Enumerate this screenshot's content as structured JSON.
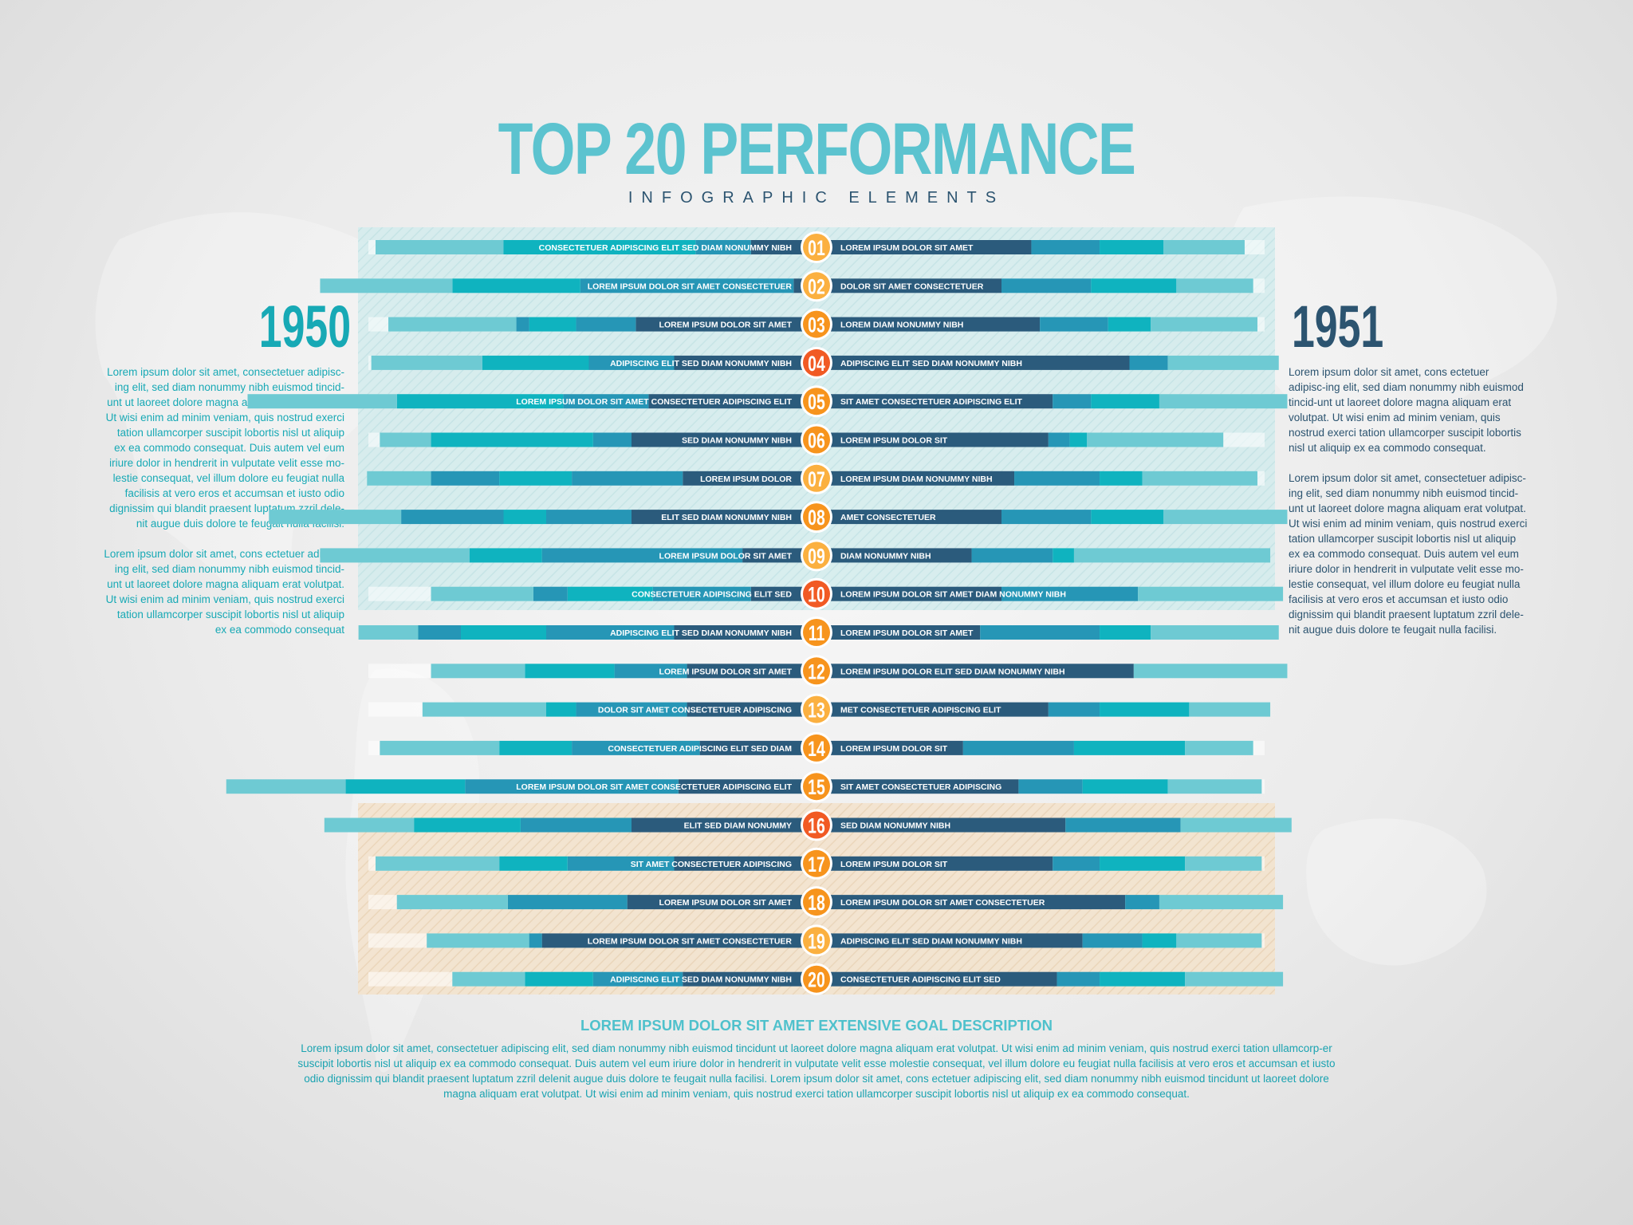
{
  "header": {
    "title": "TOP 20 PERFORMANCE",
    "subtitle": "INFOGRAPHIC ELEMENTS"
  },
  "left_panel": {
    "year": "1950",
    "paragraphs": [
      "Lorem ipsum dolor sit amet, consectetuer adipisc-ing elit, sed diam nonummy nibh euismod tincid-unt ut laoreet dolore magna aliquam erat volutpat. Ut wisi enim ad minim veniam, quis nostrud exerci tation ullamcorper suscipit lobortis nisl ut aliquip ex ea commodo consequat. Duis autem vel eum iriure dolor in hendrerit in vulputate velit esse mo-lestie consequat, vel illum dolore eu feugiat nulla facilisis at vero eros et accumsan et iusto odio dignissim qui blandit praesent luptatum zzril dele-nit augue duis dolore te feugait nulla facilisi.",
      "Lorem ipsum dolor sit amet, cons ectetuer adipisc-ing elit, sed diam nonummy nibh euismod tincid-unt ut laoreet dolore magna aliquam erat volutpat. Ut wisi enim ad minim veniam, quis nostrud exerci tation ullamcorper suscipit lobortis nisl ut aliquip ex ea commodo consequat"
    ]
  },
  "right_panel": {
    "year": "1951",
    "paragraphs": [
      "Lorem ipsum dolor sit amet, cons ectetuer adipisc-ing elit, sed diam nonummy nibh euismod tincid-unt ut laoreet dolore magna aliquam erat volutpat. Ut wisi enim ad minim veniam, quis nostrud exerci tation ullamcorper suscipit lobortis nisl ut aliquip ex ea commodo consequat.",
      "Lorem ipsum dolor sit amet, consectetuer adipisc-ing elit, sed diam nonummy nibh euismod tincid-unt ut laoreet dolore magna aliquam erat volutpat. Ut wisi enim ad minim veniam, quis nostrud exerci tation ullamcorper suscipit lobortis nisl ut aliquip ex ea commodo consequat. Duis autem vel eum iriure dolor in hendrerit in vulputate velit esse mo-lestie consequat, vel illum dolore eu feugiat nulla facilisis at vero eros et accumsan et iusto odio dignissim qui blandit praesent luptatum zzril dele-nit augue duis dolore te feugait nulla facilisi."
    ]
  },
  "footer": {
    "goal_title": "LOREM IPSUM DOLOR SIT AMET EXTENSIVE GOAL DESCRIPTION",
    "goal_text": "Lorem ipsum dolor sit amet, consectetuer adipiscing elit, sed diam nonummy nibh euismod tincidunt ut laoreet dolore magna aliquam erat volutpat. Ut wisi enim ad minim veniam, quis nostrud exerci tation ullamcorp-er suscipit lobortis nisl ut aliquip ex ea commodo consequat. Duis autem vel eum iriure dolor in hendrerit in vulputate velit esse molestie consequat, vel illum dolore eu feugiat nulla facilisis at vero eros et accumsan et iusto odio dignissim qui blandit praesent luptatum zzril delenit augue duis dolore te feugait nulla facilisi. Lorem ipsum dolor sit amet, cons ectetuer adipiscing elit, sed diam nonummy nibh euismod tincidunt ut laoreet dolore magna aliquam erat volutpat. Ut wisi enim ad minim veniam, quis nostrud exerci tation ullamcorper suscipit lobortis nisl ut aliquip ex ea commodo consequat."
  },
  "colors": {
    "accent": "#5cc3cf",
    "dark": "#2c5470",
    "seg_light": "#6ecad3",
    "seg_teal": "#0fb3bf",
    "seg_mid": "#2696b6",
    "seg_dark": "#2b5b7c",
    "badge_yellow": "#fbb040",
    "badge_orange": "#f7941d",
    "badge_red": "#f15a24",
    "band_top": "#cfe9ea",
    "band_bottom": "#f3e1c9"
  },
  "chart_data": {
    "type": "bar",
    "layout": "diverging",
    "title": "TOP 20 PERFORMANCE",
    "subtitle": "INFOGRAPHIC ELEMENTS",
    "series_left_name": "1950",
    "series_right_name": "1951",
    "axis_max": 100,
    "rows": [
      {
        "rank": "01",
        "left_label": "CONSECTETUER ADIPISCING ELIT SED DIAM NONUMMY NIBH",
        "right_label": "LOREM IPSUM DOLOR SIT AMET",
        "left": [
          12,
          13,
          45,
          30
        ],
        "right": [
          47,
          16,
          15,
          19
        ],
        "badge": "yellow"
      },
      {
        "rank": "02",
        "left_label": "LOREM IPSUM DOLOR SIT AMET CONSECTETUER",
        "right_label": "DOLOR SIT AMET CONSECTETUER",
        "left": [
          2,
          50,
          30,
          31
        ],
        "right": [
          40,
          21,
          20,
          18
        ],
        "badge": "yellow"
      },
      {
        "rank": "03",
        "left_label": "LOREM IPSUM DOLOR SIT AMET",
        "right_label": "LOREM DIAM NONUMMY NIBH",
        "left": [
          39,
          14,
          11,
          3,
          30
        ],
        "right": [
          49,
          16,
          10,
          25
        ],
        "badge": "orange"
      },
      {
        "rank": "04",
        "left_label": "ADIPISCING ELIT SED DIAM NONUMMY NIBH",
        "right_label": "ADIPISCING ELIT SED DIAM NONUMMY NIBH",
        "left": [
          30,
          20,
          25,
          26
        ],
        "right": [
          70,
          9,
          26
        ],
        "badge": "red"
      },
      {
        "rank": "05",
        "left_label": "LOREM IPSUM DOLOR SIT AMET CONSECTETUER ADIPISCING ELIT",
        "right_label": "SIT AMET CONSECTETUER ADIPISCING ELIT",
        "left": [
          36,
          20,
          39,
          35
        ],
        "right": [
          52,
          9,
          16,
          30
        ],
        "badge": "orange"
      },
      {
        "rank": "06",
        "left_label": "SED DIAM NONUMMY NIBH",
        "right_label": "LOREM IPSUM DOLOR SIT",
        "left": [
          40,
          9,
          38,
          12
        ],
        "right": [
          51,
          5,
          4,
          32
        ],
        "badge": "orange"
      },
      {
        "rank": "07",
        "left_label": "LOREM IPSUM DOLOR",
        "right_label": "LOREM IPSUM DIAM NONUMMY NIBH",
        "left": [
          28,
          26,
          17,
          16,
          15
        ],
        "right": [
          43,
          20,
          10,
          27
        ],
        "badge": "yellow"
      },
      {
        "rank": "08",
        "left_label": "ELIT SED DIAM NONUMMY NIBH",
        "right_label": "AMET CONSECTETUER",
        "left": [
          40,
          20,
          10,
          24,
          31
        ],
        "right": [
          40,
          21,
          17,
          29
        ],
        "badge": "orange"
      },
      {
        "rank": "09",
        "left_label": "LOREM IPSUM DOLOR SIT AMET",
        "right_label": "DIAM NONUMMY NIBH",
        "left": [
          14,
          47,
          17,
          35
        ],
        "right": [
          33,
          19,
          5,
          46
        ],
        "badge": "yellow"
      },
      {
        "rank": "10",
        "left_label": "CONSECTETUER ADIPISCING ELIT SED",
        "right_label": "LOREM IPSUM DOLOR SIT AMET DIAM NONUMMY NIBH",
        "left": [
          12,
          23,
          20,
          8,
          24
        ],
        "right": [
          40,
          32,
          34
        ],
        "badge": "red"
      },
      {
        "rank": "11",
        "left_label": "ADIPISCING ELIT SED DIAM NONUMMY NIBH",
        "right_label": "LOREM IPSUM DOLOR SIT AMET",
        "left": [
          30,
          30,
          20,
          10,
          14
        ],
        "right": [
          35,
          28,
          12,
          30
        ],
        "badge": "orange"
      },
      {
        "rank": "12",
        "left_label": "LOREM IPSUM DOLOR SIT AMET",
        "right_label": "LOREM IPSUM DOLOR ELIT SED DIAM NONUMMY NIBH",
        "left": [
          27,
          17,
          21,
          22
        ],
        "right": [
          71,
          36
        ],
        "badge": "orange"
      },
      {
        "rank": "13",
        "left_label": "DOLOR SIT AMET CONSECTETUER ADIPISCING",
        "right_label": "MET CONSECTETUER ADIPISCING ELIT",
        "left": [
          27,
          26,
          7,
          29
        ],
        "right": [
          51,
          12,
          21,
          19
        ],
        "badge": "yellow"
      },
      {
        "rank": "14",
        "left_label": "CONSECTETUER ADIPISCING ELIT SED DIAM",
        "right_label": "LOREM IPSUM DOLOR SIT",
        "left": [
          24,
          30,
          17,
          28
        ],
        "right": [
          31,
          26,
          26,
          16
        ],
        "badge": "orange"
      },
      {
        "rank": "15",
        "left_label": "LOREM IPSUM DOLOR SIT AMET CONSECTETUER ADIPISCING ELIT",
        "right_label": "SIT AMET CONSECTETUER ADIPISCING",
        "left": [
          29,
          50,
          28,
          28
        ],
        "right": [
          44,
          15,
          20,
          22
        ],
        "badge": "orange"
      },
      {
        "rank": "16",
        "left_label": "ELIT SED DIAM NONUMMY",
        "right_label": "SED DIAM NONUMMY NIBH",
        "left": [
          40,
          26,
          25,
          21
        ],
        "right": [
          55,
          27,
          26
        ],
        "badge": "red"
      },
      {
        "rank": "17",
        "left_label": "SIT AMET CONSECTETUER ADIPISCING",
        "right_label": "LOREM IPSUM DOLOR SIT",
        "left": [
          30,
          25,
          16,
          29
        ],
        "right": [
          52,
          11,
          20,
          18
        ],
        "badge": "orange"
      },
      {
        "rank": "18",
        "left_label": "LOREM IPSUM DOLOR SIT AMET",
        "right_label": "LOREM IPSUM DOLOR SIT AMET CONSECTETUER",
        "left": [
          41,
          28,
          26
        ],
        "right": [
          69,
          8,
          29
        ],
        "badge": "orange"
      },
      {
        "rank": "19",
        "left_label": "LOREM IPSUM DOLOR SIT AMET CONSECTETUER",
        "right_label": "ADIPISCING ELIT SED DIAM NONUMMY NIBH",
        "left": [
          61,
          3,
          24
        ],
        "right": [
          59,
          14,
          8,
          20
        ],
        "badge": "yellow"
      },
      {
        "rank": "20",
        "left_label": "ADIPISCING ELIT SED DIAM NONUMMY NIBH",
        "right_label": "CONSECTETUER ADIPISCING ELIT SED",
        "left": [
          28,
          21,
          16,
          17
        ],
        "right": [
          53,
          10,
          20,
          23
        ],
        "badge": "orange"
      }
    ]
  }
}
